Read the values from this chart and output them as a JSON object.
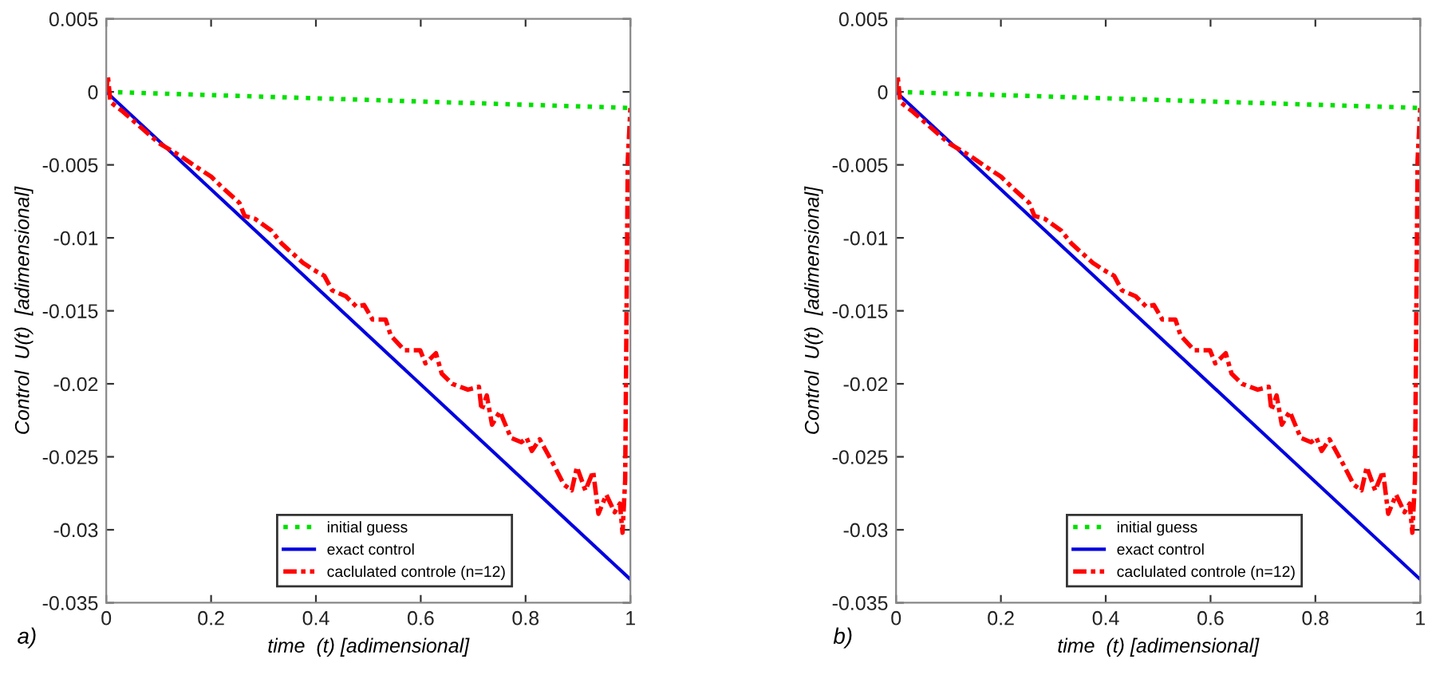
{
  "chart_data": [
    {
      "type": "line",
      "xlabel": "time  (t) [adimensional]",
      "ylabel": "Control  U(t)  [adimensional]",
      "annotations": [
        "a)"
      ],
      "xlim": [
        0,
        1
      ],
      "ylim": [
        -0.035,
        0.005
      ],
      "xticks": [
        0,
        0.2,
        0.4,
        0.6,
        0.8,
        1
      ],
      "yticks": [
        -0.035,
        -0.03,
        -0.025,
        -0.02,
        -0.015,
        -0.01,
        -0.005,
        0,
        0.005
      ],
      "legend": "bottom",
      "grid": false,
      "series": [
        {
          "name": "initial guess",
          "color": "#00e000",
          "line_style": "dotted",
          "x": [
            0,
            1
          ],
          "values": [
            0,
            -0.0011
          ]
        },
        {
          "name": "exact control",
          "color": "#0000e0",
          "line_style": "solid",
          "x": [
            0,
            1
          ],
          "values": [
            0,
            -0.0334
          ]
        },
        {
          "name": "caclulated controle (n=12)",
          "color": "#ff0000",
          "line_style": "dashdot",
          "x": [
            0,
            0.003,
            0.008,
            0.03,
            0.1,
            0.142,
            0.17,
            0.2,
            0.223,
            0.254,
            0.264,
            0.284,
            0.315,
            0.335,
            0.375,
            0.396,
            0.416,
            0.431,
            0.457,
            0.477,
            0.492,
            0.508,
            0.533,
            0.543,
            0.569,
            0.599,
            0.609,
            0.629,
            0.64,
            0.66,
            0.69,
            0.711,
            0.716,
            0.726,
            0.736,
            0.751,
            0.772,
            0.792,
            0.802,
            0.812,
            0.827,
            0.853,
            0.873,
            0.888,
            0.898,
            0.914,
            0.929,
            0.939,
            0.954,
            0.97,
            0.98,
            0.985,
            0.99,
            0.995,
            1.0
          ],
          "values": [
            0,
            0.0011,
            -0.0007,
            -0.0013,
            -0.0035,
            -0.0044,
            -0.0051,
            -0.0058,
            -0.0066,
            -0.0076,
            -0.0085,
            -0.0087,
            -0.0095,
            -0.0104,
            -0.0117,
            -0.0122,
            -0.0126,
            -0.0136,
            -0.014,
            -0.0147,
            -0.0146,
            -0.0156,
            -0.0156,
            -0.0167,
            -0.0177,
            -0.0177,
            -0.0186,
            -0.0179,
            -0.0193,
            -0.02,
            -0.0204,
            -0.0202,
            -0.0218,
            -0.0208,
            -0.0228,
            -0.0219,
            -0.0237,
            -0.024,
            -0.0237,
            -0.0246,
            -0.0238,
            -0.0255,
            -0.0269,
            -0.0273,
            -0.0257,
            -0.0273,
            -0.026,
            -0.0289,
            -0.0276,
            -0.0288,
            -0.0282,
            -0.0302,
            -0.0266,
            -0.0047,
            -0.0011
          ]
        }
      ]
    },
    {
      "type": "line",
      "xlabel": "time  (t) [adimensional]",
      "ylabel": "Control  U(t)  [adimensional]",
      "annotations": [
        "b)"
      ],
      "xlim": [
        0,
        1
      ],
      "ylim": [
        -0.035,
        0.005
      ],
      "xticks": [
        0,
        0.2,
        0.4,
        0.6,
        0.8,
        1
      ],
      "yticks": [
        -0.035,
        -0.03,
        -0.025,
        -0.02,
        -0.015,
        -0.01,
        -0.005,
        0,
        0.005
      ],
      "legend": "bottom",
      "grid": false,
      "series": [
        {
          "name": "initial guess",
          "color": "#00e000",
          "line_style": "dotted",
          "x": [
            0,
            1
          ],
          "values": [
            0,
            -0.0011
          ]
        },
        {
          "name": "exact control",
          "color": "#0000e0",
          "line_style": "solid",
          "x": [
            0,
            1
          ],
          "values": [
            0,
            -0.0334
          ]
        },
        {
          "name": "caclulated controle (n=12)",
          "color": "#ff0000",
          "line_style": "dashdot",
          "x": [
            0,
            0.003,
            0.008,
            0.03,
            0.1,
            0.142,
            0.17,
            0.2,
            0.223,
            0.254,
            0.264,
            0.284,
            0.315,
            0.335,
            0.375,
            0.396,
            0.416,
            0.431,
            0.457,
            0.477,
            0.492,
            0.508,
            0.533,
            0.543,
            0.569,
            0.599,
            0.609,
            0.629,
            0.64,
            0.66,
            0.69,
            0.711,
            0.716,
            0.726,
            0.736,
            0.751,
            0.772,
            0.792,
            0.802,
            0.812,
            0.827,
            0.853,
            0.873,
            0.888,
            0.898,
            0.914,
            0.929,
            0.939,
            0.954,
            0.97,
            0.98,
            0.985,
            0.99,
            0.995,
            1.0
          ],
          "values": [
            0,
            0.0011,
            -0.0007,
            -0.0013,
            -0.0035,
            -0.0044,
            -0.0051,
            -0.0058,
            -0.0066,
            -0.0076,
            -0.0085,
            -0.0087,
            -0.0095,
            -0.0104,
            -0.0117,
            -0.0122,
            -0.0126,
            -0.0136,
            -0.014,
            -0.0147,
            -0.0146,
            -0.0156,
            -0.0156,
            -0.0167,
            -0.0177,
            -0.0177,
            -0.0186,
            -0.0179,
            -0.0193,
            -0.02,
            -0.0204,
            -0.0202,
            -0.0218,
            -0.0208,
            -0.0228,
            -0.0219,
            -0.0237,
            -0.024,
            -0.0237,
            -0.0246,
            -0.0238,
            -0.0255,
            -0.0269,
            -0.0273,
            -0.0257,
            -0.0273,
            -0.026,
            -0.0289,
            -0.0276,
            -0.0288,
            -0.0282,
            -0.0302,
            -0.0266,
            -0.0047,
            -0.0011
          ]
        }
      ]
    }
  ]
}
